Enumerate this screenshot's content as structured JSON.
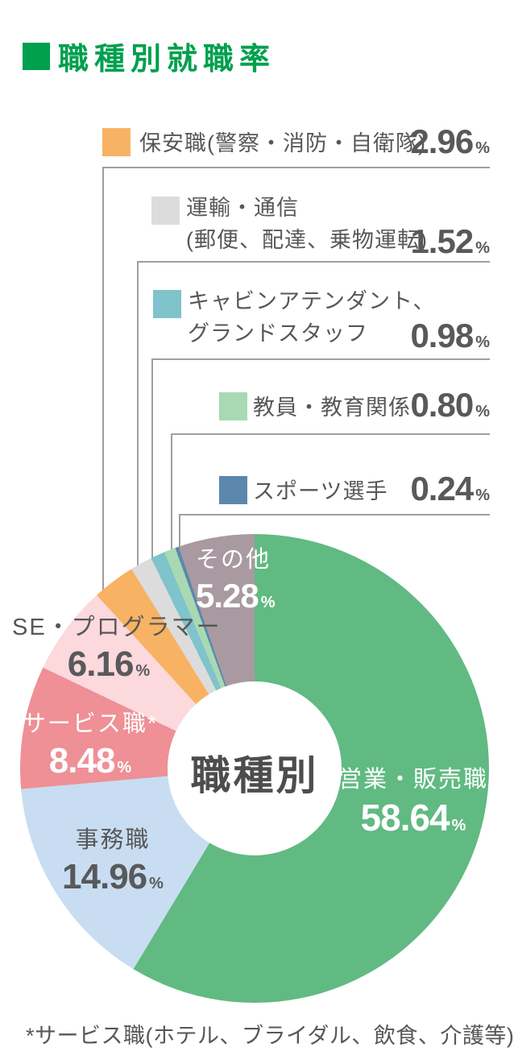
{
  "title": "職種別就職率",
  "center_label": "職種別",
  "percent_sign": "%",
  "footnote": "*サービス職(ホテル、ブライダル、飲食、介護等)",
  "accent_color": "#00a04e",
  "text_color": "#575757",
  "number_color": "#58595b",
  "callout_line_color": "#9f9fa0",
  "chart_data": {
    "type": "pie",
    "title": "職種別就職率",
    "donut": true,
    "center_text": "職種別",
    "start_angle_deg": 0,
    "direction": "clockwise",
    "slices": [
      {
        "label": "営業・販売職",
        "value": 58.64,
        "value_text": "58.64",
        "color": "#61ba82"
      },
      {
        "label": "事務職",
        "value": 14.96,
        "value_text": "14.96",
        "color": "#c8ddf1"
      },
      {
        "label": "サービス職*",
        "value": 8.48,
        "value_text": "8.48",
        "color": "#ee9096"
      },
      {
        "label": "SE・プログラマー",
        "value": 6.16,
        "value_text": "6.16",
        "color": "#fbd9dc"
      },
      {
        "label": "保安職(警察・消防・自衛隊)",
        "value": 2.96,
        "value_text": "2.96",
        "color": "#f8b264"
      },
      {
        "label": "運輸・通信(郵便、配達、乗物運転)",
        "value": 1.52,
        "value_text": "1.52",
        "color": "#dcdcdc"
      },
      {
        "label": "キャビンアテンダント、グランドスタッフ",
        "value": 0.98,
        "value_text": "0.98",
        "color": "#7fc3cb"
      },
      {
        "label": "教員・教育関係",
        "value": 0.8,
        "value_text": "0.80",
        "color": "#a8d9b2"
      },
      {
        "label": "スポーツ選手",
        "value": 0.24,
        "value_text": "0.24",
        "color": "#5c87ad"
      },
      {
        "label": "その他",
        "value": 5.28,
        "value_text": "5.28",
        "color": "#a89aa0"
      }
    ]
  },
  "legend": {
    "items": [
      {
        "line1": "保安職(警察・消防・自衛隊)",
        "line2": ""
      },
      {
        "line1": "運輸・通信",
        "line2": "(郵便、配達、乗物運転)"
      },
      {
        "line1": "キャビンアテンダント、",
        "line2": "グランドスタッフ"
      },
      {
        "line1": "教員・教育関係",
        "line2": ""
      },
      {
        "line1": "スポーツ選手",
        "line2": ""
      }
    ]
  }
}
